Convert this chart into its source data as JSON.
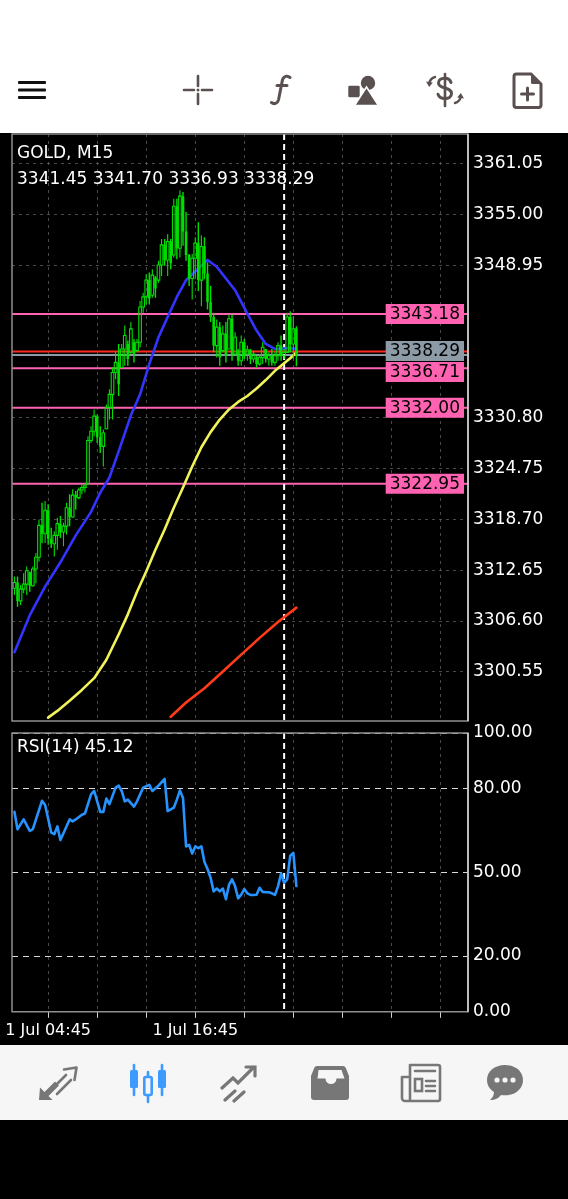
{
  "chart_data": [
    {
      "type": "candlestick",
      "title": "GOLD, M15",
      "subtitle": "3341.45 3341.70 3336.93 3338.29",
      "color": "#00e000",
      "x": [
        "--07-01T02:00",
        "--07-01T02:15",
        "--07-01T02:30",
        "--07-01T02:45",
        "--07-01T03:00",
        "--07-01T03:15",
        "--07-01T03:30",
        "--07-01T03:45",
        "--07-01T04:00",
        "--07-01T04:15",
        "--07-01T04:30",
        "--07-01T04:45",
        "--07-01T05:00",
        "--07-01T05:15",
        "--07-01T05:30",
        "--07-01T05:45",
        "--07-01T06:00",
        "--07-01T06:15",
        "--07-01T06:30",
        "--07-01T06:45",
        "--07-01T07:00",
        "--07-01T07:15",
        "--07-01T07:30",
        "--07-01T07:45",
        "--07-01T08:00",
        "--07-01T08:15",
        "--07-01T08:30",
        "--07-01T08:45",
        "--07-01T09:00",
        "--07-01T09:15",
        "--07-01T09:30",
        "--07-01T09:45",
        "--07-01T10:00",
        "--07-01T10:15",
        "--07-01T10:30",
        "--07-01T10:45",
        "--07-01T11:00",
        "--07-01T11:15",
        "--07-01T11:30",
        "--07-01T11:45",
        "--07-01T12:00",
        "--07-01T12:15",
        "--07-01T12:30",
        "--07-01T12:45",
        "--07-01T13:00",
        "--07-01T13:15",
        "--07-01T13:30",
        "--07-01T13:45",
        "--07-01T14:00",
        "--07-01T14:15",
        "--07-01T14:30",
        "--07-01T14:45",
        "--07-01T15:00",
        "--07-01T15:15",
        "--07-01T15:30",
        "--07-01T15:45",
        "--07-01T16:00",
        "--07-01T16:15",
        "--07-01T16:30",
        "--07-01T16:45",
        "--07-01T17:00",
        "--07-01T17:15",
        "--07-01T17:30",
        "--07-01T17:45",
        "--07-01T18:00",
        "--07-01T18:15",
        "--07-01T18:30",
        "--07-01T18:45",
        "--07-01T19:00",
        "--07-01T19:15",
        "--07-01T19:30",
        "--07-01T19:45",
        "--07-01T20:00",
        "--07-01T20:15",
        "--07-01T20:30",
        "--07-01T20:45",
        "--07-01T21:00",
        "--07-01T21:15",
        "--07-01T21:30",
        "--07-01T21:45",
        "--07-01T22:00",
        "--07-01T22:15",
        "--07-01T22:30",
        "--07-01T22:45",
        "--07-01T23:00",
        "--07-01T23:15",
        "--07-01T23:30",
        "--07-01T23:45",
        "--07-02T00:00",
        "--07-02T00:15",
        "--07-02T00:30",
        "--07-02T00:45",
        "--07-02T01:00"
      ],
      "ohlc": [
        [
          3310.5,
          3311.9,
          3309.7,
          3311.2
        ],
        [
          3311.2,
          3311.9,
          3308.3,
          3309.0
        ],
        [
          3309.0,
          3310.9,
          3308.5,
          3310.4
        ],
        [
          3310.4,
          3312.3,
          3309.9,
          3311.0
        ],
        [
          3311.0,
          3313.1,
          3309.7,
          3312.6
        ],
        [
          3312.4,
          3312.5,
          3310.1,
          3310.8
        ],
        [
          3310.8,
          3313.1,
          3310.7,
          3312.8
        ],
        [
          3312.8,
          3314.7,
          3311.1,
          3314.2
        ],
        [
          3314.2,
          3318.7,
          3313.7,
          3318.0
        ],
        [
          3318.0,
          3320.7,
          3315.9,
          3317.0
        ],
        [
          3317.0,
          3320.9,
          3315.9,
          3319.8
        ],
        [
          3319.8,
          3320.5,
          3315.7,
          3316.4
        ],
        [
          3316.4,
          3317.7,
          3315.3,
          3315.8
        ],
        [
          3315.8,
          3317.3,
          3314.3,
          3316.8
        ],
        [
          3316.8,
          3318.9,
          3315.1,
          3318.2
        ],
        [
          3318.2,
          3319.1,
          3316.5,
          3317.2
        ],
        [
          3317.2,
          3318.3,
          3315.5,
          3317.9
        ],
        [
          3317.9,
          3320.7,
          3316.9,
          3320.1
        ],
        [
          3320.1,
          3321.7,
          3317.9,
          3319.0
        ],
        [
          3319.0,
          3322.3,
          3318.9,
          3321.6
        ],
        [
          3321.6,
          3322.1,
          3319.9,
          3321.3
        ],
        [
          3321.3,
          3322.5,
          3321.1,
          3322.2
        ],
        [
          3322.2,
          3322.9,
          3321.7,
          3322.5
        ],
        [
          3322.5,
          3322.9,
          3321.9,
          3322.7
        ],
        [
          3322.9,
          3328.6,
          3322.9,
          3328.1
        ],
        [
          3328.1,
          3329.8,
          3327.8,
          3329.2
        ],
        [
          3329.2,
          3331.8,
          3328.6,
          3331.0
        ],
        [
          3331.0,
          3331.2,
          3327.8,
          3328.5
        ],
        [
          3328.5,
          3329.8,
          3326.6,
          3327.4
        ],
        [
          3327.4,
          3329.4,
          3325.0,
          3329.0
        ],
        [
          3329.5,
          3332.4,
          3329.4,
          3332.0
        ],
        [
          3332.0,
          3334.2,
          3330.6,
          3333.6
        ],
        [
          3333.6,
          3336.8,
          3330.6,
          3336.2
        ],
        [
          3336.2,
          3338.6,
          3335.4,
          3337.4
        ],
        [
          3337.4,
          3339.6,
          3333.4,
          3334.8
        ],
        [
          3336.8,
          3339.6,
          3336.6,
          3339.0
        ],
        [
          3339.0,
          3341.8,
          3337.0,
          3340.6
        ],
        [
          3339.6,
          3340.0,
          3337.0,
          3337.8
        ],
        [
          3338.6,
          3342.2,
          3338.4,
          3341.4
        ],
        [
          3339.8,
          3340.2,
          3337.4,
          3338.4
        ],
        [
          3338.8,
          3340.2,
          3338.6,
          3339.8
        ],
        [
          3339.8,
          3344.7,
          3339.2,
          3344.0
        ],
        [
          3344.0,
          3345.7,
          3343.3,
          3345.2
        ],
        [
          3345.2,
          3347.9,
          3344.3,
          3347.2
        ],
        [
          3347.2,
          3348.1,
          3344.3,
          3345.0
        ],
        [
          3345.4,
          3348.5,
          3345.1,
          3347.8
        ],
        [
          3347.5,
          3347.7,
          3345.1,
          3346.2
        ],
        [
          3347.2,
          3349.5,
          3346.9,
          3349.0
        ],
        [
          3349.0,
          3352.1,
          3347.7,
          3351.4
        ],
        [
          3351.4,
          3352.1,
          3348.9,
          3349.6
        ],
        [
          3349.6,
          3352.7,
          3347.7,
          3351.8
        ],
        [
          3351.8,
          3352.1,
          3348.5,
          3349.2
        ],
        [
          3350.2,
          3356.9,
          3349.9,
          3356.0
        ],
        [
          3356.0,
          3356.9,
          3349.7,
          3351.0
        ],
        [
          3351.0,
          3357.9,
          3349.9,
          3357.2
        ],
        [
          3357.2,
          3357.7,
          3351.3,
          3353.0
        ],
        [
          3353.0,
          3355.3,
          3349.5,
          3350.2
        ],
        [
          3350.2,
          3350.3,
          3346.5,
          3347.4
        ],
        [
          3347.4,
          3350.3,
          3344.9,
          3349.8
        ],
        [
          3349.8,
          3352.3,
          3347.3,
          3351.6
        ],
        [
          3351.6,
          3354.1,
          3345.9,
          3347.2
        ],
        [
          3347.2,
          3352.5,
          3344.1,
          3351.2
        ],
        [
          3351.2,
          3352.3,
          3347.3,
          3348.0
        ],
        [
          3348.0,
          3349.3,
          3343.7,
          3344.6
        ],
        [
          3344.6,
          3346.5,
          3342.2,
          3342.8
        ],
        [
          3342.8,
          3343.3,
          3338.6,
          3339.4
        ],
        [
          3339.4,
          3342.5,
          3338.0,
          3341.6
        ],
        [
          3341.6,
          3342.2,
          3337.0,
          3338.0
        ],
        [
          3338.8,
          3341.8,
          3338.6,
          3340.8
        ],
        [
          3340.8,
          3342.2,
          3337.4,
          3338.2
        ],
        [
          3339.0,
          3343.1,
          3339.0,
          3342.6
        ],
        [
          3342.6,
          3343.1,
          3337.6,
          3338.4
        ],
        [
          3338.4,
          3341.0,
          3338.2,
          3340.4
        ],
        [
          3338.6,
          3339.0,
          3337.0,
          3337.6
        ],
        [
          3337.6,
          3340.6,
          3337.0,
          3339.8
        ],
        [
          3339.8,
          3340.2,
          3337.8,
          3338.4
        ],
        [
          3338.4,
          3339.4,
          3337.6,
          3338.9
        ],
        [
          3338.9,
          3339.0,
          3337.2,
          3337.8
        ],
        [
          3337.8,
          3338.8,
          3337.4,
          3338.4
        ],
        [
          3338.0,
          3338.2,
          3336.8,
          3337.2
        ],
        [
          3337.2,
          3338.4,
          3337.0,
          3338.0
        ],
        [
          3338.0,
          3339.8,
          3337.2,
          3339.2
        ],
        [
          3339.0,
          3339.0,
          3337.4,
          3337.8
        ],
        [
          3337.8,
          3338.6,
          3337.0,
          3338.2
        ],
        [
          3338.2,
          3339.0,
          3337.0,
          3337.4
        ],
        [
          3337.4,
          3338.6,
          3337.0,
          3338.2
        ],
        [
          3338.2,
          3339.8,
          3337.6,
          3339.4
        ],
        [
          3339.4,
          3340.6,
          3337.6,
          3338.2
        ],
        [
          3338.2,
          3339.0,
          3337.8,
          3338.6
        ],
        [
          3338.6,
          3343.3,
          3338.6,
          3342.8
        ],
        [
          3342.8,
          3343.5,
          3338.6,
          3339.6
        ],
        [
          3339.6,
          3342.9,
          3337.8,
          3341.4
        ],
        [
          3341.45,
          3341.7,
          3336.93,
          3338.29
        ]
      ],
      "series": [
        {
          "type": "line",
          "color": "#3434ff",
          "x": [
            "--07-01T02:00",
            "--07-01T03:15",
            "--07-01T04:30",
            "--07-01T05:45",
            "--07-01T07:00",
            "--07-01T08:15",
            "--07-01T09:00",
            "--07-01T09:45",
            "--07-01T10:30",
            "--07-01T11:30",
            "--07-01T12:15",
            "--07-01T13:00",
            "--07-01T13:45",
            "--07-01T14:30",
            "--07-01T15:15",
            "--07-01T16:00",
            "--07-01T17:45",
            "--07-01T18:30",
            "--07-01T19:15",
            "--07-01T20:00",
            "--07-01T21:00",
            "--07-01T21:45",
            "--07-01T22:30",
            "--07-01T23:15",
            "--07-02T00:30",
            "--07-02T01:00"
          ],
          "values": [
            3302.9,
            3307.3,
            3310.7,
            3313.6,
            3316.8,
            3319.6,
            3321.9,
            3323.7,
            3326.8,
            3331.1,
            3333.6,
            3337.2,
            3340.4,
            3342.8,
            3345.2,
            3347.2,
            3349.6,
            3348.8,
            3347.4,
            3346.0,
            3343.2,
            3341.2,
            3339.6,
            3339.0,
            3339.1,
            3339.0
          ]
        },
        {
          "type": "line",
          "color": "#f2f25a",
          "x": [
            "--07-01T04:45",
            "--07-01T05:30",
            "--07-01T06:30",
            "--07-01T07:30",
            "--07-01T08:30",
            "--07-01T09:30",
            "--07-01T10:30",
            "--07-01T11:15",
            "--07-01T12:00",
            "--07-01T12:45",
            "--07-01T13:30",
            "--07-01T14:15",
            "--07-01T15:00",
            "--07-01T15:45",
            "--07-01T16:30",
            "--07-01T17:15",
            "--07-01T18:00",
            "--07-01T18:45",
            "--07-01T19:30",
            "--07-01T20:15",
            "--07-01T21:00",
            "--07-01T21:45",
            "--07-01T22:30",
            "--07-01T23:15",
            "--07-02T00:00",
            "--07-02T00:30",
            "--07-02T01:00"
          ],
          "values": [
            3295.1,
            3295.9,
            3297.1,
            3298.4,
            3299.8,
            3302.0,
            3305.0,
            3307.4,
            3310.1,
            3312.5,
            3315.1,
            3317.5,
            3320.1,
            3322.5,
            3325.0,
            3327.3,
            3329.1,
            3330.6,
            3331.8,
            3332.7,
            3333.4,
            3334.3,
            3335.3,
            3336.4,
            3337.3,
            3337.9,
            3338.6
          ]
        },
        {
          "type": "line",
          "color": "#ff3b1a",
          "x": [
            "--07-01T14:45",
            "--07-01T16:00",
            "--07-01T17:30",
            "--07-01T19:00",
            "--07-01T20:30",
            "--07-01T22:00",
            "--07-01T23:30",
            "--07-02T01:00"
          ],
          "values": [
            3295.2,
            3296.9,
            3298.6,
            3300.6,
            3302.6,
            3304.6,
            3306.5,
            3308.2
          ]
        }
      ],
      "xlim": [
        "--07-01T01:48",
        "--07-02T15:00"
      ],
      "xticks": [
        {
          "value": "--07-01T04:45",
          "label": null
        },
        {
          "value": "--07-01T08:45",
          "label": null
        },
        {
          "value": "--07-01T12:45",
          "label": null
        },
        {
          "value": "--07-01T16:45",
          "label": null
        },
        {
          "value": "--07-01T20:45",
          "label": null
        },
        {
          "value": "--07-02T00:45",
          "label": null
        },
        {
          "value": "--07-02T04:45",
          "label": null
        },
        {
          "value": "--07-02T08:45",
          "label": null
        },
        {
          "value": "--07-02T12:45",
          "label": null
        }
      ],
      "ylim": [
        3294.7,
        3364.6
      ],
      "yticks": [
        3300.55,
        {
          "value": 3306.6,
          "label": "3306.60"
        },
        3312.65,
        {
          "value": 3318.7,
          "label": "3318.70"
        },
        3324.75,
        {
          "value": 3330.8,
          "label": "3330.80"
        },
        3348.95,
        {
          "value": 3355,
          "label": "3355.00"
        },
        3361.05
      ],
      "grid": true,
      "tick_labels": "y",
      "ref_lines": [
        {
          "axis": "y",
          "value": 3343.18,
          "label": "3343.18",
          "color": "#ff62b0"
        },
        {
          "axis": "y",
          "value": 3338.7,
          "color": "#ff2a1f"
        },
        {
          "axis": "y",
          "value": 3338.29,
          "label": "3338.29",
          "color": "#8c9ba6"
        },
        {
          "axis": "y",
          "value": 3336.71,
          "label": "3336.71",
          "color": "#ff62b0"
        },
        {
          "axis": "y",
          "value": 3332.0,
          "label": "3332.00",
          "color": "#ff62b0"
        },
        {
          "axis": "y",
          "value": 3322.95,
          "label": "3322.95",
          "color": "#ff62b0"
        },
        {
          "axis": "x",
          "value": "--07-02T00:00",
          "color": "#ffffff",
          "line_style": "dashed"
        }
      ]
    },
    {
      "type": "line",
      "title": "RSI(14) 45.12",
      "x": [
        "--07-01T02:00",
        "--07-01T02:15",
        "--07-01T02:45",
        "--07-01T03:15",
        "--07-01T03:30",
        "--07-01T04:15",
        "--07-01T04:30",
        "--07-01T05:00",
        "--07-01T05:15",
        "--07-01T05:30",
        "--07-01T05:45",
        "--07-01T06:30",
        "--07-01T06:45",
        "--07-01T07:00",
        "--07-01T07:30",
        "--07-01T07:45",
        "--07-01T08:15",
        "--07-01T08:30",
        "--07-01T09:00",
        "--07-01T09:15",
        "--07-01T09:30",
        "--07-01T09:45",
        "--07-01T10:15",
        "--07-01T10:30",
        "--07-01T10:45",
        "--07-01T11:00",
        "--07-01T11:15",
        "--07-01T11:45",
        "--07-01T12:00",
        "--07-01T12:30",
        "--07-01T13:00",
        "--07-01T13:15",
        "--07-01T13:45",
        "--07-01T14:15",
        "--07-01T14:30",
        "--07-01T15:00",
        "--07-01T15:15",
        "--07-01T15:30",
        "--07-01T15:45",
        "--07-01T16:00",
        "--07-01T16:15",
        "--07-01T16:30",
        "--07-01T16:45",
        "--07-01T17:00",
        "--07-01T17:15",
        "--07-01T17:30",
        "--07-01T17:45",
        "--07-01T18:00",
        "--07-01T18:15",
        "--07-01T18:30",
        "--07-01T18:45",
        "--07-01T19:00",
        "--07-01T19:15",
        "--07-01T19:30",
        "--07-01T19:45",
        "--07-01T20:00",
        "--07-01T20:15",
        "--07-01T20:30",
        "--07-01T20:45",
        "--07-01T21:00",
        "--07-01T21:15",
        "--07-01T21:30",
        "--07-01T21:45",
        "--07-01T22:00",
        "--07-01T22:15",
        "--07-01T22:30",
        "--07-01T22:45",
        "--07-01T23:00",
        "--07-01T23:15",
        "--07-01T23:30",
        "--07-01T23:45",
        "--07-02T00:00",
        "--07-02T00:15",
        "--07-02T00:30",
        "--07-02T00:45",
        "--07-02T01:00"
      ],
      "series": [
        {
          "color": "#2693ff",
          "values": [
            71.7,
            65.5,
            69.0,
            64.9,
            65.5,
            75.7,
            74.2,
            64.3,
            63.7,
            66.5,
            61.6,
            69.0,
            68.3,
            69.0,
            70.7,
            71.1,
            78.0,
            79.2,
            71.7,
            71.7,
            76.5,
            74.5,
            80.4,
            81.1,
            79.2,
            75.5,
            76.1,
            73.6,
            75.5,
            80.4,
            81.4,
            79.2,
            81.1,
            83.5,
            72.0,
            73.2,
            76.1,
            79.4,
            76.7,
            59.3,
            59.9,
            56.8,
            59.3,
            58.7,
            59.3,
            53.7,
            51.2,
            48.1,
            43.2,
            44.2,
            43.2,
            44.2,
            40.4,
            45.5,
            47.5,
            45.0,
            40.7,
            42.0,
            44.0,
            42.5,
            41.9,
            41.9,
            42.0,
            44.5,
            43.0,
            42.9,
            42.9,
            42.5,
            41.9,
            45.0,
            49.6,
            46.3,
            47.5,
            56.0,
            57.0,
            45.1
          ]
        }
      ],
      "xlim": [
        "--07-01T01:48",
        "--07-02T15:00"
      ],
      "xticks": [
        {
          "value": "--07-01T04:45",
          "label": "1 Jul 04:45"
        },
        {
          "value": "--07-01T08:45",
          "label": null
        },
        {
          "value": "--07-01T12:45",
          "label": null
        },
        {
          "value": "--07-01T16:45",
          "label": "1 Jul 16:45"
        },
        {
          "value": "--07-01T20:45",
          "label": null
        },
        {
          "value": "--07-02T00:45",
          "label": null
        },
        {
          "value": "--07-02T04:45",
          "label": null
        },
        {
          "value": "--07-02T08:45",
          "label": null
        },
        {
          "value": "--07-02T12:45",
          "label": null
        }
      ],
      "ylim": [
        0,
        100
      ],
      "yticks": [
        {
          "value": 0,
          "label": "0.00"
        },
        {
          "value": 20,
          "label": "20.00"
        },
        {
          "value": 50,
          "label": "50.00"
        },
        {
          "value": 80,
          "label": "80.00"
        },
        {
          "value": 100,
          "label": "100.00"
        }
      ],
      "grid": true,
      "ref_lines": [
        {
          "axis": "x",
          "value": "--07-02T00:00",
          "color": "#ffffff",
          "line_style": "dashed"
        }
      ]
    }
  ]
}
